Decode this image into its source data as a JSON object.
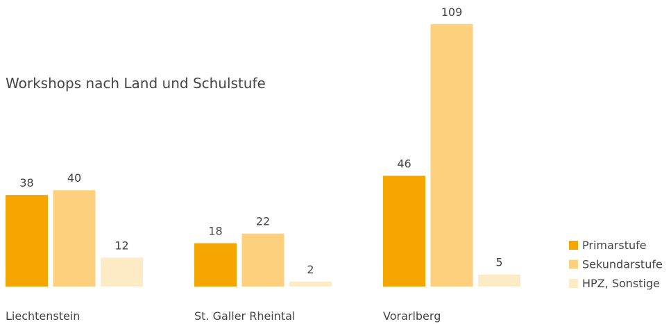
{
  "chart_data": {
    "type": "bar",
    "title": "Workshops nach Land und Schulstufe",
    "categories": [
      "Liechtenstein",
      "St. Galler Rheintal",
      "Vorarlberg"
    ],
    "series": [
      {
        "name": "Primarstufe",
        "color": "#f5a500",
        "values": [
          38,
          18,
          46
        ]
      },
      {
        "name": "Sekundarstufe",
        "color": "#fdd07e",
        "values": [
          40,
          22,
          109
        ]
      },
      {
        "name": "HPZ, Sonstige",
        "color": "#fdebc6",
        "values": [
          12,
          2,
          5
        ]
      }
    ]
  }
}
